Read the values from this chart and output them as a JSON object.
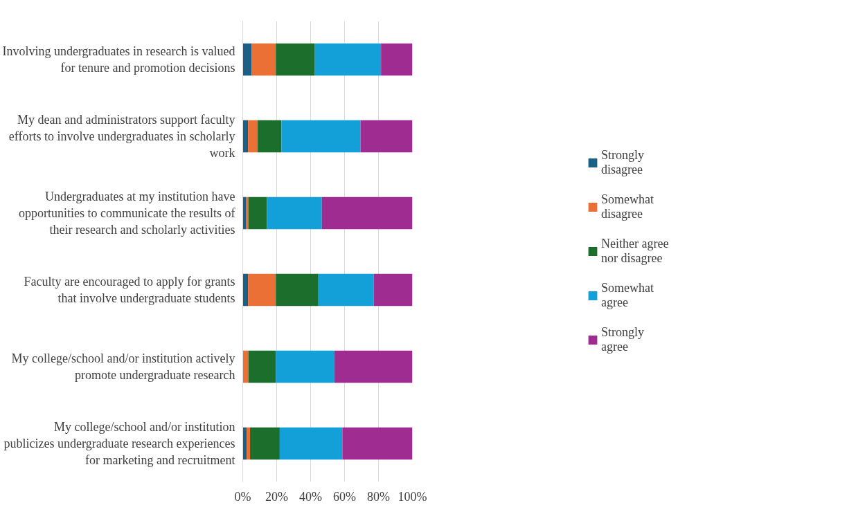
{
  "chart_data": {
    "type": "bar",
    "orientation": "horizontal",
    "stacked": true,
    "categories": [
      "Involving undergraduates in research is valued for tenure and promotion decisions",
      "My dean and administrators support faculty efforts to involve undergraduates in scholarly work",
      "Undergraduates at my institution have opportunities to communicate the results of their research and scholarly activities",
      "Faculty are encouraged to apply for grants that involve undergraduate students",
      "My college/school and/or institution actively promote undergraduate research",
      "My college/school and/or institution publicizes undergraduate research experiences for marketing and recruitment"
    ],
    "series": [
      {
        "name": "Strongly disagree",
        "color": "#1b5e86",
        "values": [
          5.3,
          3.1,
          2.1,
          3.1,
          0,
          2.3
        ]
      },
      {
        "name": "Somewhat disagree",
        "color": "#ea7035",
        "values": [
          14.2,
          5.7,
          1.2,
          16.4,
          3.3,
          2.0
        ]
      },
      {
        "name": "Neither agree nor disagree",
        "color": "#1c6e2c",
        "values": [
          23,
          14,
          10.9,
          25.1,
          16.2,
          17.5
        ]
      },
      {
        "name": "Somewhat agree",
        "color": "#139fd8",
        "values": [
          39,
          46.6,
          32.4,
          32.6,
          34.5,
          36.9
        ]
      },
      {
        "name": "Strongly agree",
        "color": "#9f2c91",
        "values": [
          18.5,
          30.6,
          53.4,
          22.8,
          46,
          41.3
        ]
      }
    ],
    "xlim": [
      0,
      100
    ],
    "xticks": [
      {
        "value": 0,
        "label": "0%"
      },
      {
        "value": 20,
        "label": "20%"
      },
      {
        "value": 40,
        "label": "40%"
      },
      {
        "value": 60,
        "label": "60%"
      },
      {
        "value": 80,
        "label": "80%"
      },
      {
        "value": 100,
        "label": "100%"
      }
    ],
    "grid": "x",
    "legend": "right"
  }
}
